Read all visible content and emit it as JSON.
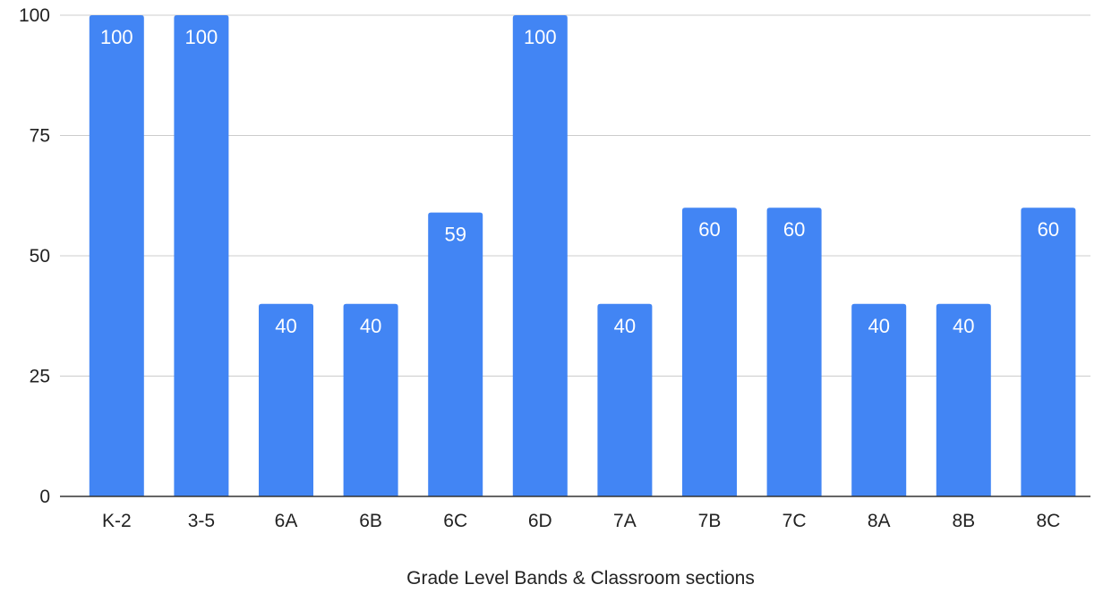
{
  "chart_data": {
    "type": "bar",
    "title": "",
    "xlabel": "Grade Level Bands & Classroom sections",
    "ylabel": "",
    "categories": [
      "K-2",
      "3-5",
      "6A",
      "6B",
      "6C",
      "6D",
      "7A",
      "7B",
      "7C",
      "8A",
      "8B",
      "8C"
    ],
    "series": [
      {
        "values": [
          100,
          100,
          40,
          40,
          59,
          100,
          40,
          60,
          60,
          40,
          40,
          60
        ],
        "color": "#4285f4"
      }
    ],
    "data_labels": [
      "100",
      "100",
      "40",
      "40",
      "59",
      "100",
      "40",
      "60",
      "60",
      "40",
      "40",
      "60"
    ],
    "ylim": [
      0,
      100
    ],
    "yticks": [
      0,
      25,
      50,
      75,
      100
    ],
    "grid": true,
    "legend": "none"
  }
}
